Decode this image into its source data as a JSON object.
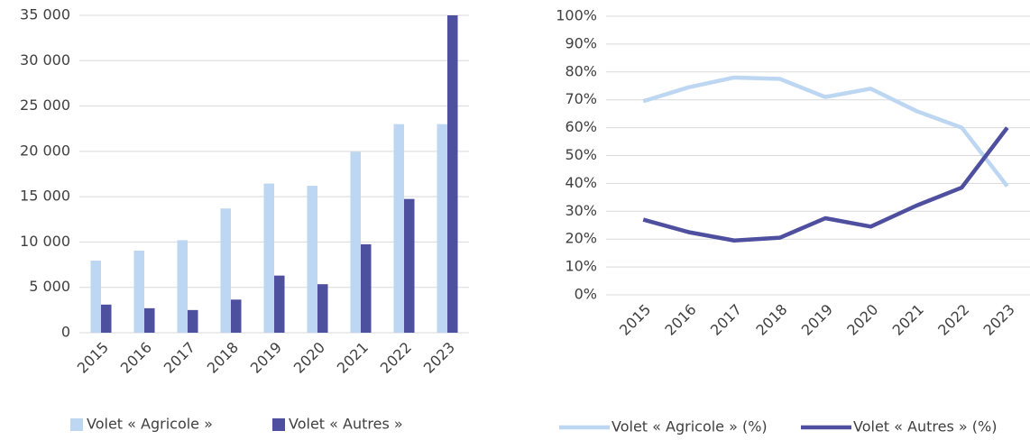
{
  "chart_data": [
    {
      "type": "bar",
      "categories": [
        "2015",
        "2016",
        "2017",
        "2018",
        "2019",
        "2020",
        "2021",
        "2022",
        "2023"
      ],
      "series": [
        {
          "name": "Volet « Agricole »",
          "color": "#bdd7f2",
          "values": [
            7950,
            9050,
            10200,
            13700,
            16450,
            16200,
            19950,
            23000,
            23000
          ]
        },
        {
          "name": "Volet « Autres »",
          "color": "#4f4f9f",
          "values": [
            3100,
            2700,
            2500,
            3650,
            6300,
            5350,
            9750,
            14750,
            35000
          ]
        }
      ],
      "ylim": [
        0,
        35000
      ],
      "yticks": [
        0,
        {
          "value": 5000,
          "label": "5 000"
        },
        {
          "value": 10000,
          "label": "10 000"
        },
        {
          "value": 15000,
          "label": "15 000"
        },
        {
          "value": 20000,
          "label": "20 000"
        },
        {
          "value": 25000,
          "label": "25 000"
        },
        {
          "value": 30000,
          "label": "30 000"
        },
        {
          "value": 35000,
          "label": "35 000"
        }
      ],
      "grid": true,
      "legend": "bottom"
    },
    {
      "type": "line",
      "categories": [
        "2015",
        "2016",
        "2017",
        "2018",
        "2019",
        "2020",
        "2021",
        "2022",
        "2023"
      ],
      "series": [
        {
          "name": "Volet « Agricole » (%)",
          "color": "#bdd7f2",
          "values": [
            69.5,
            74.5,
            78,
            77.5,
            71,
            74,
            66,
            60,
            39
          ]
        },
        {
          "name": "Volet « Autres » (%)",
          "color": "#4f4f9f",
          "values": [
            27,
            22.5,
            19.5,
            20.5,
            27.5,
            24.5,
            32,
            38.5,
            60
          ]
        }
      ],
      "ylim": [
        0,
        100
      ],
      "yticks": [
        {
          "value": 0,
          "label": "0%"
        },
        {
          "value": 10,
          "label": "10%"
        },
        {
          "value": 20,
          "label": "20%"
        },
        {
          "value": 30,
          "label": "30%"
        },
        {
          "value": 40,
          "label": "40%"
        },
        {
          "value": 50,
          "label": "50%"
        },
        {
          "value": 60,
          "label": "60%"
        },
        {
          "value": 70,
          "label": "70%"
        },
        {
          "value": 80,
          "label": "80%"
        },
        {
          "value": 90,
          "label": "90%"
        },
        {
          "value": 100,
          "label": "100%"
        }
      ],
      "grid": true,
      "legend": "bottom"
    }
  ]
}
